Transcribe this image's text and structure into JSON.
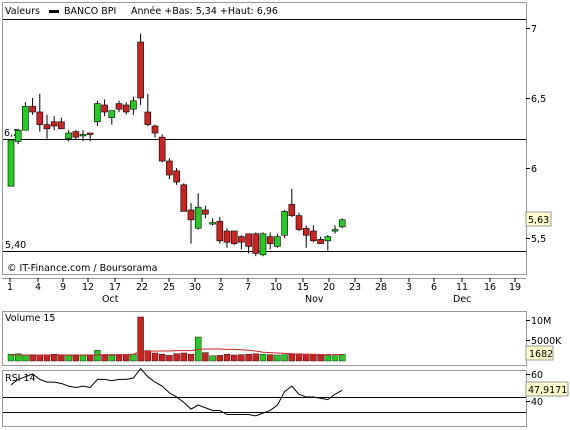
{
  "header": {
    "legend_label": "Valeurs",
    "series_label": "BANCO BPI",
    "range_label": "Année +Bas: 5,34 +Haut: 6,96"
  },
  "price_panel": {
    "y_ticks": [
      "7",
      "6,5",
      "6",
      "5,5"
    ],
    "level_high_label": "6,2",
    "level_low_label": "5,40",
    "last_price_label": "5,63",
    "source_label": "© IT-Finance.com / Boursorama",
    "x_tick_labels": [
      "1",
      "4",
      "9",
      "12",
      "17",
      "22",
      "25",
      "30",
      "2",
      "7",
      "10",
      "15",
      "20",
      "23",
      "28",
      "3",
      "6",
      "11",
      "16",
      "19"
    ],
    "month_labels": [
      "Oct",
      "Nov",
      "Dec"
    ]
  },
  "volume_panel": {
    "title": "Volume 15",
    "y_ticks": [
      "10M",
      "5000K"
    ],
    "last_value_label": "1682"
  },
  "rsi_panel": {
    "title": "RSI 14",
    "y_ticks": [
      "60",
      "40"
    ],
    "last_value_label": "47,9171"
  },
  "chart_data": [
    {
      "type": "candlestick",
      "title": "BANCO BPI",
      "y_scale": [
        5.0,
        7.0
      ],
      "ylim": [
        5.2,
        7.15
      ],
      "horizontal_lines": [
        6.2,
        5.4
      ],
      "colors": {
        "up": "#22cc22",
        "down": "#cc2222",
        "wick": "#000000"
      },
      "candles": [
        {
          "date": "Sep 30",
          "open": 5.87,
          "high": 6.2,
          "low": 5.87,
          "close": 6.2
        },
        {
          "date": "Oct 1",
          "open": 6.19,
          "high": 6.28,
          "low": 6.17,
          "close": 6.27
        },
        {
          "date": "Oct 2",
          "open": 6.27,
          "high": 6.47,
          "low": 6.27,
          "close": 6.44
        },
        {
          "date": "Oct 5",
          "open": 6.44,
          "high": 6.5,
          "low": 6.38,
          "close": 6.4
        },
        {
          "date": "Oct 6",
          "open": 6.4,
          "high": 6.53,
          "low": 6.26,
          "close": 6.31
        },
        {
          "date": "Oct 7",
          "open": 6.31,
          "high": 6.38,
          "low": 6.21,
          "close": 6.28
        },
        {
          "date": "Oct 8",
          "open": 6.33,
          "high": 6.37,
          "low": 6.27,
          "close": 6.3
        },
        {
          "date": "Oct 9",
          "open": 6.33,
          "high": 6.36,
          "low": 6.28,
          "close": 6.28
        },
        {
          "date": "Oct 12",
          "open": 6.21,
          "high": 6.27,
          "low": 6.19,
          "close": 6.25
        },
        {
          "date": "Oct 13",
          "open": 6.26,
          "high": 6.27,
          "low": 6.2,
          "close": 6.22
        },
        {
          "date": "Oct 14",
          "open": 6.23,
          "high": 6.27,
          "low": 6.19,
          "close": 6.24
        },
        {
          "date": "Oct 15",
          "open": 6.25,
          "high": 6.25,
          "low": 6.19,
          "close": 6.24
        },
        {
          "date": "Oct 16",
          "open": 6.33,
          "high": 6.48,
          "low": 6.3,
          "close": 6.46
        },
        {
          "date": "Oct 19",
          "open": 6.45,
          "high": 6.49,
          "low": 6.37,
          "close": 6.4
        },
        {
          "date": "Oct 20",
          "open": 6.36,
          "high": 6.4,
          "low": 6.31,
          "close": 6.41
        },
        {
          "date": "Oct 21",
          "open": 6.46,
          "high": 6.48,
          "low": 6.4,
          "close": 6.42
        },
        {
          "date": "Oct 22",
          "open": 6.45,
          "high": 6.47,
          "low": 6.38,
          "close": 6.4
        },
        {
          "date": "Oct 23",
          "open": 6.42,
          "high": 6.51,
          "low": 6.38,
          "close": 6.48
        },
        {
          "date": "Oct 26",
          "open": 6.9,
          "high": 6.96,
          "low": 6.45,
          "close": 6.5
        },
        {
          "date": "Oct 27",
          "open": 6.4,
          "high": 6.53,
          "low": 6.3,
          "close": 6.31
        },
        {
          "date": "Oct 28",
          "open": 6.3,
          "high": 6.31,
          "low": 6.22,
          "close": 6.25
        },
        {
          "date": "Oct 29",
          "open": 6.22,
          "high": 6.24,
          "low": 6.04,
          "close": 6.05
        },
        {
          "date": "Oct 30",
          "open": 6.05,
          "high": 6.07,
          "low": 5.92,
          "close": 5.95
        },
        {
          "date": "Nov 2",
          "open": 5.98,
          "high": 6.0,
          "low": 5.88,
          "close": 5.9
        },
        {
          "date": "Nov 3",
          "open": 5.88,
          "high": 5.89,
          "low": 5.69,
          "close": 5.69
        },
        {
          "date": "Nov 4",
          "open": 5.7,
          "high": 5.75,
          "low": 5.46,
          "close": 5.63
        },
        {
          "date": "Nov 5",
          "open": 5.57,
          "high": 5.82,
          "low": 5.56,
          "close": 5.72
        },
        {
          "date": "Nov 6",
          "open": 5.7,
          "high": 5.73,
          "low": 5.64,
          "close": 5.67
        },
        {
          "date": "Nov 9",
          "open": 5.61,
          "high": 5.64,
          "low": 5.59,
          "close": 5.61
        },
        {
          "date": "Nov 10",
          "open": 5.62,
          "high": 5.65,
          "low": 5.46,
          "close": 5.48
        },
        {
          "date": "Nov 11",
          "open": 5.55,
          "high": 5.57,
          "low": 5.43,
          "close": 5.47
        },
        {
          "date": "Nov 12",
          "open": 5.55,
          "high": 5.55,
          "low": 5.45,
          "close": 5.46
        },
        {
          "date": "Nov 13",
          "open": 5.51,
          "high": 5.52,
          "low": 5.42,
          "close": 5.47
        },
        {
          "date": "Nov 16",
          "open": 5.53,
          "high": 5.53,
          "low": 5.39,
          "close": 5.44
        },
        {
          "date": "Nov 17",
          "open": 5.53,
          "high": 5.54,
          "low": 5.37,
          "close": 5.39
        },
        {
          "date": "Nov 18",
          "open": 5.38,
          "high": 5.54,
          "low": 5.37,
          "close": 5.53
        },
        {
          "date": "Nov 19",
          "open": 5.51,
          "high": 5.54,
          "low": 5.42,
          "close": 5.46
        },
        {
          "date": "Nov 20",
          "open": 5.44,
          "high": 5.53,
          "low": 5.43,
          "close": 5.51
        },
        {
          "date": "Nov 23",
          "open": 5.52,
          "high": 5.7,
          "low": 5.5,
          "close": 5.69
        },
        {
          "date": "Nov 24",
          "open": 5.74,
          "high": 5.85,
          "low": 5.65,
          "close": 5.66
        },
        {
          "date": "Nov 25",
          "open": 5.66,
          "high": 5.68,
          "low": 5.55,
          "close": 5.56
        },
        {
          "date": "Nov 26",
          "open": 5.57,
          "high": 5.59,
          "low": 5.43,
          "close": 5.52
        },
        {
          "date": "Nov 27",
          "open": 5.55,
          "high": 5.59,
          "low": 5.47,
          "close": 5.48
        },
        {
          "date": "Nov 30",
          "open": 5.49,
          "high": 5.51,
          "low": 5.46,
          "close": 5.46
        },
        {
          "date": "Dec 1",
          "open": 5.48,
          "high": 5.52,
          "low": 5.41,
          "close": 5.51
        },
        {
          "date": "Dec 2",
          "open": 5.55,
          "high": 5.59,
          "low": 5.53,
          "close": 5.56
        },
        {
          "date": "Dec 3",
          "open": 5.58,
          "high": 5.64,
          "low": 5.57,
          "close": 5.63
        }
      ]
    },
    {
      "type": "bar",
      "title": "Volume 15",
      "ylim": [
        0,
        12000000
      ],
      "average_line_color": "#cc2222",
      "values": [
        1700000,
        1800000,
        1500000,
        1300000,
        1500000,
        1400000,
        1700000,
        1600000,
        1400000,
        1300000,
        1400000,
        1300000,
        2700000,
        1500000,
        1400000,
        1500000,
        1600000,
        1700000,
        11000000,
        2600000,
        2000000,
        1700000,
        1400000,
        1800000,
        2000000,
        1700000,
        6000000,
        2100000,
        1300000,
        1400000,
        1700000,
        1500000,
        1600000,
        1700000,
        1800000,
        1700000,
        1600000,
        1500000,
        1600000,
        1700000,
        1800000,
        1700000,
        1500000,
        1500000,
        1400000,
        1300000,
        1682000
      ],
      "average_values": [
        1500000,
        1500000,
        1500000,
        1500000,
        1500000,
        1500000,
        1500000,
        1500000,
        1500000,
        1500000,
        1500000,
        1500000,
        1500000,
        1600000,
        1600000,
        1600000,
        1600000,
        1700000,
        2300000,
        2400000,
        2500000,
        2500000,
        2500000,
        2600000,
        2600000,
        2600000,
        2900000,
        3000000,
        3000000,
        3000000,
        2900000,
        2900000,
        2800000,
        2700000,
        2500000,
        2200000,
        2100000,
        2000000,
        1900000,
        1800000,
        1700000,
        1700000,
        1700000,
        1600000,
        1600000,
        1600000,
        1600000
      ]
    },
    {
      "type": "line",
      "title": "RSI 14",
      "ylim": [
        20,
        60
      ],
      "reference_lines": [
        40,
        30
      ],
      "values": [
        52,
        56,
        58,
        60,
        56,
        54,
        54,
        53,
        51,
        50,
        51,
        50,
        56,
        56,
        55,
        56,
        56,
        57,
        64,
        58,
        54,
        51,
        46,
        43,
        39,
        34,
        37,
        35,
        33,
        33,
        30,
        30,
        30,
        30,
        29,
        31,
        33,
        37,
        47,
        51,
        45,
        43,
        43,
        42,
        41,
        45,
        47.9171
      ]
    }
  ]
}
